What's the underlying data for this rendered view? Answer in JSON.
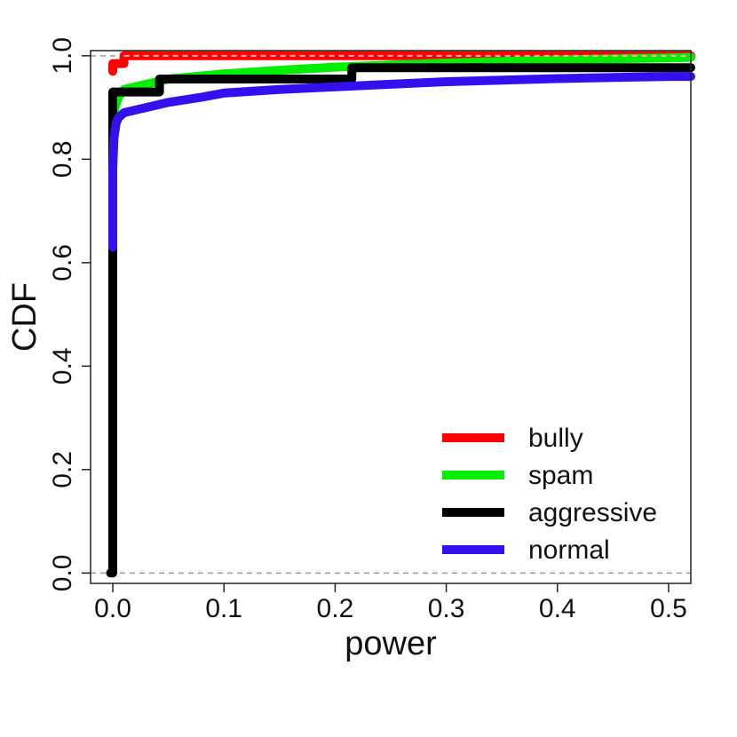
{
  "chart_data": {
    "type": "line",
    "title": "",
    "xlabel": "power",
    "ylabel": "CDF",
    "xlim": [
      -0.02,
      0.52
    ],
    "ylim": [
      -0.02,
      1.01
    ],
    "x_ticks": [
      0.0,
      0.1,
      0.2,
      0.3,
      0.4,
      0.5
    ],
    "x_tick_labels": [
      "0.0",
      "0.1",
      "0.2",
      "0.3",
      "0.4",
      "0.5"
    ],
    "y_ticks": [
      0.0,
      0.2,
      0.4,
      0.6,
      0.8,
      1.0
    ],
    "y_tick_labels": [
      "0.0",
      "0.2",
      "0.4",
      "0.6",
      "0.8",
      "1.0"
    ],
    "reference_lines_y": [
      0.0,
      1.0
    ],
    "grid": false,
    "legend_position": "bottom-right",
    "series": [
      {
        "name": "bully",
        "color": "#ff0000",
        "points": [
          [
            0.0,
            0.97
          ],
          [
            0.0,
            0.985
          ],
          [
            0.01,
            0.985
          ],
          [
            0.01,
            1.0
          ],
          [
            0.52,
            1.0
          ]
        ]
      },
      {
        "name": "spam",
        "color": "#00ee00",
        "points": [
          [
            0.0,
            0.87
          ],
          [
            0.002,
            0.9
          ],
          [
            0.005,
            0.92
          ],
          [
            0.01,
            0.935
          ],
          [
            0.03,
            0.945
          ],
          [
            0.05,
            0.955
          ],
          [
            0.1,
            0.965
          ],
          [
            0.15,
            0.972
          ],
          [
            0.2,
            0.978
          ],
          [
            0.25,
            0.982
          ],
          [
            0.3,
            0.986
          ],
          [
            0.35,
            0.989
          ],
          [
            0.4,
            0.992
          ],
          [
            0.45,
            0.994
          ],
          [
            0.5,
            0.996
          ],
          [
            0.52,
            0.997
          ]
        ]
      },
      {
        "name": "aggressive",
        "color": "#000000",
        "points": [
          [
            -0.002,
            0.0
          ],
          [
            0.0,
            0.0
          ],
          [
            0.0,
            0.835
          ],
          [
            0.0,
            0.86
          ],
          [
            0.0,
            0.885
          ],
          [
            0.0,
            0.905
          ],
          [
            0.0,
            0.93
          ],
          [
            0.042,
            0.93
          ],
          [
            0.042,
            0.955
          ],
          [
            0.215,
            0.955
          ],
          [
            0.215,
            0.977
          ],
          [
            0.52,
            0.977
          ]
        ]
      },
      {
        "name": "normal",
        "color": "#3311ee",
        "points": [
          [
            0.0,
            0.63
          ],
          [
            0.0,
            0.7
          ],
          [
            0.0,
            0.78
          ],
          [
            0.001,
            0.84
          ],
          [
            0.003,
            0.87
          ],
          [
            0.005,
            0.88
          ],
          [
            0.01,
            0.89
          ],
          [
            0.02,
            0.895
          ],
          [
            0.03,
            0.9
          ],
          [
            0.05,
            0.91
          ],
          [
            0.08,
            0.92
          ],
          [
            0.1,
            0.928
          ],
          [
            0.15,
            0.935
          ],
          [
            0.2,
            0.94
          ],
          [
            0.25,
            0.945
          ],
          [
            0.3,
            0.95
          ],
          [
            0.35,
            0.953
          ],
          [
            0.4,
            0.956
          ],
          [
            0.45,
            0.958
          ],
          [
            0.5,
            0.96
          ],
          [
            0.52,
            0.96
          ]
        ]
      }
    ]
  }
}
